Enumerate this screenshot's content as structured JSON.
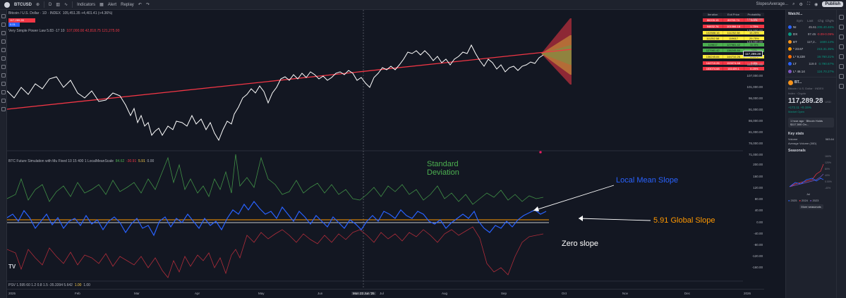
{
  "topbar": {
    "symbol": "BTCUSD",
    "interval": "D",
    "indicators": "Indicators",
    "alert": "Alert",
    "replay": "Replay",
    "layout_name": "SlopesAverage...",
    "publish": "Publish"
  },
  "legend": {
    "title": "Bitcoin / U.S. Dollar · 1D · INDEX",
    "ohlc": "105,451.35 +4,401.41 (+4.36%)",
    "indicator1": "Very Simple Power Law 5.83 -17 10",
    "indicator1_values": "107,000.00 42,818.75 121,275.00",
    "indicator2": "BTC Future Simulation with Mu Fixed 10 15 400 1 LocalMeanScale",
    "indicator2_val1": "84.62",
    "indicator2_val2": "-30.91",
    "indicator2_val3": "5.91",
    "indicator2_val4": "0.00",
    "pane3": "PSV 1.595 60 1.2 0.8 1.5 -35.3394 5.642",
    "pane3_v1": "1.00",
    "pane3_v2": "1.00",
    "pricebox": [
      "117,289.28",
      "0.01",
      "117,289.28"
    ]
  },
  "annotations": {
    "std_line1": "Standard",
    "std_line2": "Deviation",
    "local_mean": "Local Mean Slope",
    "global_slope": "5.91 Global Slope",
    "zero_slope": "Zero slope"
  },
  "table": {
    "headers": [
      "Iteration",
      "Exit Price",
      "Probability"
    ],
    "rows": [
      [
        "86205.15",
        "89703.74",
        "0.0%"
      ],
      [
        "94632.76",
        "101066.18",
        "1.75%"
      ],
      [
        "102888.16",
        "111252.58",
        "15.25%"
      ],
      [
        "111252.58",
        "119617",
        "29.75%"
      ],
      [
        "119617",
        "127981.42",
        "32.5%"
      ],
      [
        "127981.42",
        "136245.84",
        "14%"
      ],
      [
        "136245.84",
        "144710.26",
        "4.25%"
      ],
      [
        "144710.26",
        "153074.68",
        "0.5%"
      ],
      [
        "153074.68",
        "161439.1",
        "0.25%"
      ]
    ],
    "row_colors": [
      "#f23645",
      "#f23645",
      "#ffeb3b",
      "#ffeb3b",
      "#4caf50",
      "#4caf50",
      "#ffeb3b",
      "#f23645",
      "#f23645"
    ]
  },
  "price_axis": [
    "134,000.00",
    "128,000.00",
    "123,000.00",
    "117,289.28",
    "112,000.00",
    "107,000.00",
    "101,000.00",
    "96,000.00",
    "91,000.00",
    "86,000.00",
    "81,000.00",
    "76,000.00",
    "71,000.00"
  ],
  "slope_axis": [
    "200.00",
    "160.00",
    "120.00",
    "80.00",
    "40.00",
    "0.00",
    "-40.00",
    "-80.00",
    "-120.00",
    "-160.00"
  ],
  "time_axis": [
    "2025",
    "Feb",
    "Mar",
    "Apr",
    "May",
    "Jun",
    "Mon 23 Jun '25",
    "Jul",
    "Aug",
    "Sep",
    "Oct",
    "Nov",
    "Dec",
    "2026"
  ],
  "sidebar": {
    "title": "Watchl...",
    "headers": [
      "Sym",
      "Last",
      "Chg",
      "Chg%"
    ],
    "watchlist": [
      {
        "sym": "NI",
        "last": "45.61",
        "chg": "205.4",
        "pct": "0.46%",
        "color": "#2962ff",
        "neg": false
      },
      {
        "sym": "DX",
        "last": "97.45",
        "chg": "-0.09",
        "pct": "-0.09%",
        "color": "#089981",
        "neg": true
      },
      {
        "sym": "BT",
        "last": "117,2..",
        "chg": "160",
        "pct": "0.14%",
        "color": "#f7931a",
        "neg": false
      },
      {
        "sym": "* 23.67",
        "last": "",
        "chg": "215.3",
        "pct": "1.35%",
        "color": "#ff9800",
        "neg": false
      },
      {
        "sym": "L* 9,228",
        "last": "",
        "chg": "19.76",
        "pct": "0.21%",
        "color": "#ff6d00",
        "neg": false
      },
      {
        "sym": "LT",
        "last": "119.0",
        "chg": "0.79",
        "pct": "0.67%",
        "color": "#2962ff",
        "neg": false
      },
      {
        "sym": "L* 46.14",
        "last": "",
        "chg": "124.7",
        "pct": "0.27%",
        "color": "#7e57c2",
        "neg": false
      }
    ],
    "detail_symbol": "BT...",
    "detail_name": "Bitcoin / U.S. Dollar · INDEX",
    "detail_sub": "Index · Crypto",
    "detail_price": "117,289.28",
    "detail_currency": "USD",
    "detail_change": "+172.11 +0.15%",
    "detail_market": "Market Open",
    "news": "1 hour ago · Bitcoin Holds $117,500 On...",
    "keystats_title": "Key stats",
    "keystats": [
      {
        "label": "Volume",
        "value": "583.64"
      },
      {
        "label": "Average Volume (30D)",
        "value": ""
      }
    ],
    "seasonals_title": "Seasonals",
    "seasonals_axis": [
      "160%",
      "120%",
      "80%",
      "40%",
      "0.00%",
      "-40%"
    ],
    "seasonals_month": "Jul",
    "seasonals_legend": [
      "2025",
      "2024",
      "2023"
    ],
    "seasonals_colors": [
      "#2962ff",
      "#f23645",
      "#7e57c2"
    ],
    "more_button": "More seasonals"
  }
}
